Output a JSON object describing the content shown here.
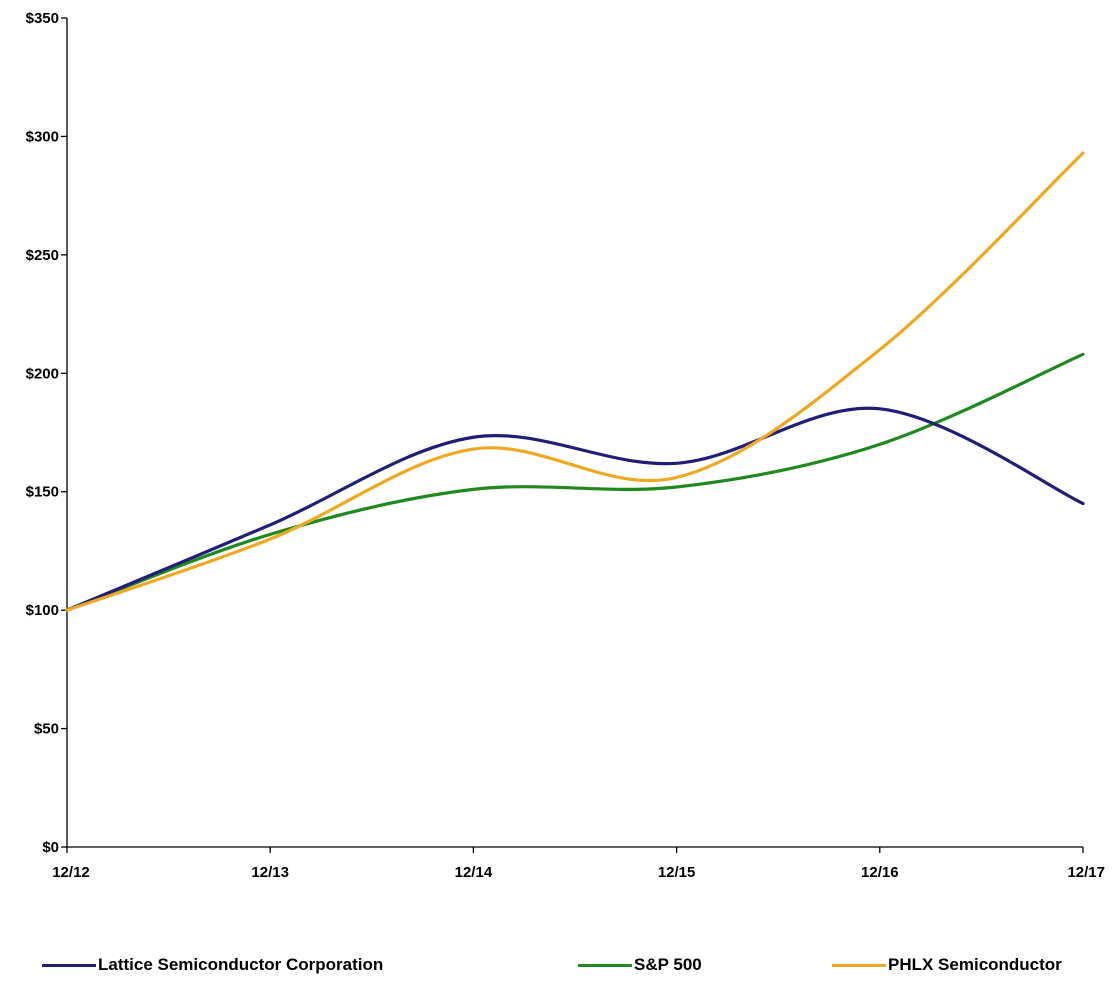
{
  "chart_data": {
    "type": "line",
    "title": "",
    "xlabel": "",
    "ylabel": "",
    "categories": [
      "12/12",
      "12/13",
      "12/14",
      "12/15",
      "12/16",
      "12/17"
    ],
    "ylim": [
      0,
      350
    ],
    "yticks": [
      0,
      50,
      100,
      150,
      200,
      250,
      300,
      350
    ],
    "ytick_labels": [
      "$0",
      "$50",
      "$100",
      "$150",
      "$200",
      "$250",
      "$300",
      "$350"
    ],
    "grid": false,
    "smooth": true,
    "legend_position": "bottom",
    "series": [
      {
        "name": "Lattice Semiconductor Corporation",
        "color": "#1f1f7a",
        "values": [
          100,
          136,
          173,
          162,
          185,
          145
        ]
      },
      {
        "name": "S&P 500",
        "color": "#1e8a1e",
        "values": [
          100,
          132,
          151,
          152,
          170,
          208
        ]
      },
      {
        "name": "PHLX Semiconductor",
        "color": "#f0a820",
        "values": [
          100,
          130,
          168,
          156,
          210,
          293
        ]
      }
    ]
  }
}
